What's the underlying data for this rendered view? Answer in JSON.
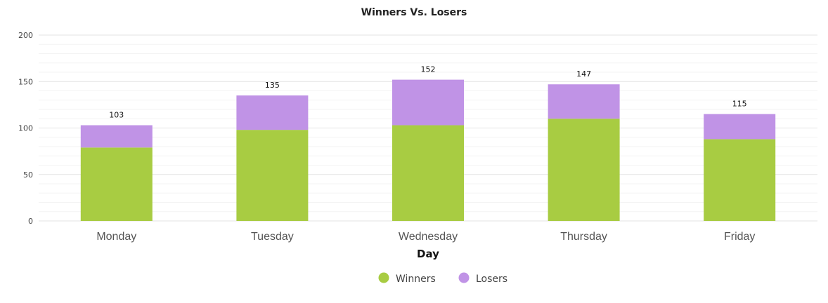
{
  "chart_data": {
    "type": "bar",
    "stacked": true,
    "title": "Winners Vs. Losers",
    "xlabel": "Day",
    "ylabel": "",
    "ylim": [
      0,
      200
    ],
    "yticks": [
      "0",
      "50",
      "100",
      "150",
      "200"
    ],
    "categories": [
      "Monday",
      "Tuesday",
      "Wednesday",
      "Thursday",
      "Friday"
    ],
    "series": [
      {
        "name": "Winners",
        "color": "#a8cc42",
        "values": [
          79,
          98,
          103,
          110,
          88
        ]
      },
      {
        "name": "Losers",
        "color": "#c093e6",
        "values": [
          24,
          37,
          49,
          37,
          27
        ]
      }
    ],
    "totals": [
      "103",
      "135",
      "152",
      "147",
      "115"
    ],
    "grid": true,
    "legend": "bottom-center"
  }
}
